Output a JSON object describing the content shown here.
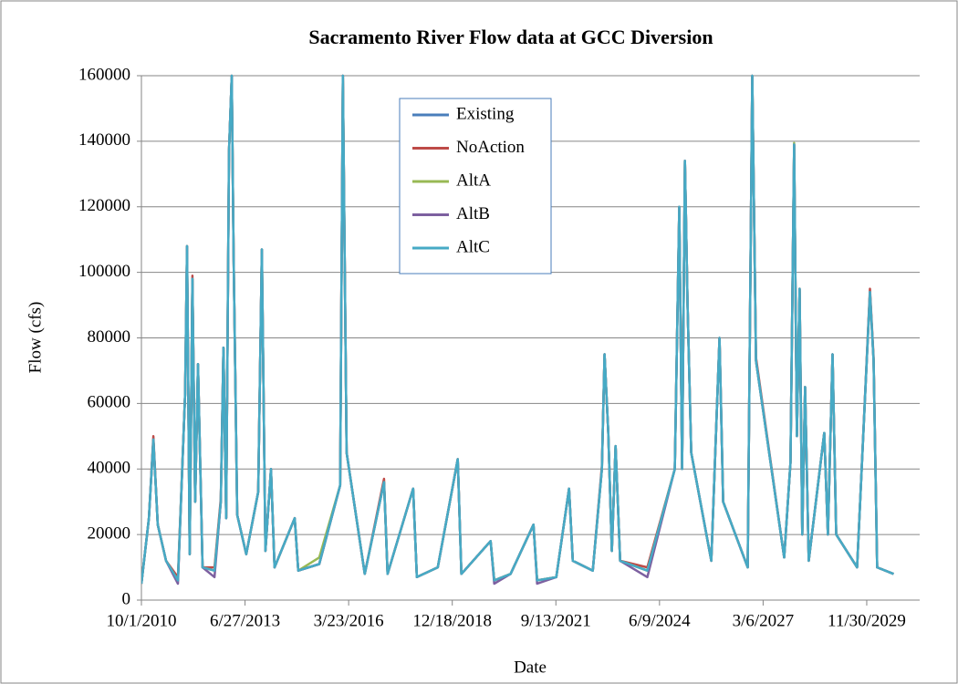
{
  "chart_data": {
    "type": "line",
    "title": "Sacramento River Flow data at GCC Diversion",
    "xlabel": "Date",
    "ylabel": "Flow (cfs)",
    "x": [
      "10/1/2010",
      "12/12/2010",
      "1/24/2011",
      "3/8/2011",
      "5/27/2011",
      "9/18/2011",
      "11/27/2011",
      "12/15/2011",
      "1/10/2012",
      "2/5/2012",
      "3/3/2012",
      "3/30/2012",
      "5/13/2012",
      "9/5/2012",
      "11/5/2012",
      "12/1/2012",
      "12/27/2012",
      "1/23/2013",
      "2/19/2013",
      "3/8/2013",
      "4/13/2013",
      "7/9/2013",
      "11/1/2013",
      "12/6/2013",
      "1/10/2014",
      "3/4/2014",
      "4/8/2014",
      "10/19/2014",
      "11/23/2014",
      "6/13/2015",
      "1/1/2016",
      "1/27/2016",
      "3/3/2016",
      "8/26/2016",
      "2/27/2017",
      "4/3/2017",
      "12/5/2017",
      "1/10/2018",
      "7/31/2018",
      "2/9/2019",
      "3/16/2019",
      "12/23/2019",
      "1/27/2020",
      "7/3/2020",
      "2/9/2021",
      "3/16/2021",
      "9/17/2021",
      "1/18/2022",
      "2/23/2022",
      "9/4/2022",
      "12/1/2022",
      "12/27/2022",
      "2/1/2023",
      "3/7/2023",
      "4/12/2023",
      "5/26/2023",
      "2/13/2024",
      "11/4/2024",
      "12/17/2024",
      "1/13/2025",
      "2/9/2025",
      "3/7/2025",
      "4/11/2025",
      "10/22/2025",
      "1/9/2026",
      "2/13/2026",
      "10/8/2026",
      "11/21/2026",
      "12/27/2026",
      "9/25/2027",
      "11/25/2027",
      "12/30/2027",
      "1/26/2028",
      "2/21/2028",
      "3/18/2028",
      "4/14/2028",
      "5/19/2028",
      "10/16/2028",
      "11/20/2028",
      "1/4/2029",
      "2/8/2029",
      "8/29/2029",
      "12/31/2029",
      "2/4/2030",
      "3/11/2030",
      "8/16/2030"
    ],
    "series": [
      {
        "name": "Existing",
        "color": "#4a7ebb",
        "values": [
          5000,
          25000,
          49000,
          23000,
          12000,
          6000,
          63000,
          108000,
          14000,
          98000,
          30000,
          72000,
          10000,
          9000,
          30000,
          77000,
          25000,
          137000,
          160000,
          106000,
          26000,
          14000,
          33000,
          107000,
          15000,
          40000,
          10000,
          25000,
          9000,
          11000,
          35000,
          160000,
          45000,
          8000,
          36000,
          8000,
          34000,
          7000,
          10000,
          43000,
          8000,
          18000,
          6000,
          8000,
          23000,
          6000,
          7000,
          34000,
          12000,
          9000,
          40000,
          75000,
          51000,
          15000,
          47000,
          12000,
          9000,
          40000,
          120000,
          40000,
          134000,
          90000,
          45000,
          12000,
          80000,
          30000,
          10000,
          160000,
          73000,
          13000,
          42000,
          139000,
          50000,
          95000,
          20000,
          65000,
          12000,
          51000,
          20000,
          75000,
          20000,
          10000,
          94000,
          73000,
          10000,
          8000
        ]
      },
      {
        "name": "NoAction",
        "color": "#be4b48",
        "values": [
          5000,
          25000,
          50000,
          23000,
          12000,
          7000,
          63000,
          108000,
          14000,
          99000,
          30000,
          72000,
          10000,
          10000,
          31000,
          77000,
          25000,
          137000,
          160000,
          106000,
          26000,
          14000,
          33000,
          107000,
          15000,
          40000,
          10000,
          25000,
          9000,
          11000,
          35000,
          160000,
          45000,
          8000,
          37000,
          8000,
          34000,
          7000,
          10000,
          43000,
          8000,
          18000,
          6000,
          8000,
          23000,
          6000,
          7000,
          34000,
          12000,
          9000,
          41000,
          75000,
          51000,
          15000,
          47000,
          12000,
          10000,
          40000,
          120000,
          40000,
          134000,
          90000,
          45000,
          12000,
          80000,
          30000,
          10000,
          160000,
          74000,
          13000,
          42000,
          139000,
          50000,
          95000,
          20000,
          65000,
          12000,
          51000,
          20000,
          75000,
          20000,
          10000,
          95000,
          74000,
          10000,
          8000
        ]
      },
      {
        "name": "AltA",
        "color": "#98b954",
        "values": [
          5000,
          25000,
          49000,
          23000,
          12000,
          6000,
          63000,
          108000,
          14000,
          98000,
          30000,
          72000,
          10000,
          9000,
          30000,
          77000,
          25000,
          137000,
          160000,
          106000,
          26000,
          14000,
          33000,
          107000,
          15000,
          40000,
          10000,
          25000,
          9000,
          13000,
          35000,
          160000,
          45000,
          8000,
          36000,
          8000,
          34000,
          7000,
          10000,
          43000,
          8000,
          18000,
          6000,
          8000,
          23000,
          6000,
          7000,
          34000,
          12000,
          9000,
          40000,
          75000,
          51000,
          15000,
          47000,
          12000,
          9000,
          40000,
          120000,
          40000,
          134000,
          90000,
          45000,
          12000,
          80000,
          30000,
          10000,
          160000,
          73000,
          13000,
          42000,
          139500,
          50000,
          95000,
          20000,
          65000,
          12000,
          51000,
          20000,
          75000,
          20000,
          10000,
          94000,
          73000,
          10000,
          8000
        ]
      },
      {
        "name": "AltB",
        "color": "#7d60a0",
        "values": [
          5000,
          25000,
          49000,
          23000,
          12000,
          5000,
          63000,
          108000,
          14000,
          98000,
          30000,
          72000,
          10000,
          7000,
          30000,
          77000,
          25000,
          137000,
          160000,
          106000,
          26000,
          14000,
          33000,
          107000,
          15000,
          40000,
          10000,
          25000,
          9000,
          11000,
          35000,
          160000,
          45000,
          8000,
          36000,
          8000,
          34000,
          7000,
          10000,
          43000,
          8000,
          18000,
          5000,
          8000,
          23000,
          5000,
          7000,
          34000,
          12000,
          9000,
          40000,
          75000,
          51000,
          15000,
          47000,
          12000,
          7000,
          40000,
          120000,
          40000,
          134000,
          90000,
          45000,
          12000,
          80000,
          30000,
          10000,
          160000,
          73000,
          13000,
          42000,
          139000,
          50000,
          95000,
          20000,
          65000,
          12000,
          51000,
          20000,
          75000,
          20000,
          10000,
          94000,
          73000,
          10000,
          8000
        ]
      },
      {
        "name": "AltC",
        "color": "#46aac5",
        "values": [
          5000,
          25000,
          49000,
          23000,
          12000,
          6000,
          63000,
          108000,
          14000,
          98000,
          30000,
          72000,
          10000,
          9000,
          30000,
          77000,
          25000,
          137000,
          160000,
          106000,
          26000,
          14000,
          33000,
          107000,
          15000,
          40000,
          10000,
          25000,
          9000,
          11000,
          35000,
          160000,
          45000,
          8000,
          36000,
          8000,
          34000,
          7000,
          10000,
          43000,
          8000,
          18000,
          6000,
          8000,
          23000,
          6000,
          7000,
          34000,
          12000,
          9000,
          40000,
          75000,
          51000,
          15000,
          47000,
          12000,
          9000,
          40000,
          120000,
          40000,
          134000,
          90000,
          45000,
          12000,
          80000,
          30000,
          10000,
          160000,
          73000,
          13000,
          42000,
          139000,
          50000,
          95000,
          20000,
          65000,
          12000,
          51000,
          20000,
          75000,
          20000,
          10000,
          94000,
          73000,
          10000,
          8000
        ]
      }
    ],
    "xlim": [
      "10/1/2010",
      "4/25/2031"
    ],
    "xticks": [
      "10/1/2010",
      "6/27/2013",
      "3/23/2016",
      "12/18/2018",
      "9/13/2021",
      "6/9/2024",
      "3/6/2027",
      "11/30/2029"
    ],
    "ylim": [
      0,
      160000
    ],
    "yticks": [
      0,
      20000,
      40000,
      60000,
      80000,
      100000,
      120000,
      140000,
      160000
    ],
    "grid": true,
    "legend": "top"
  }
}
